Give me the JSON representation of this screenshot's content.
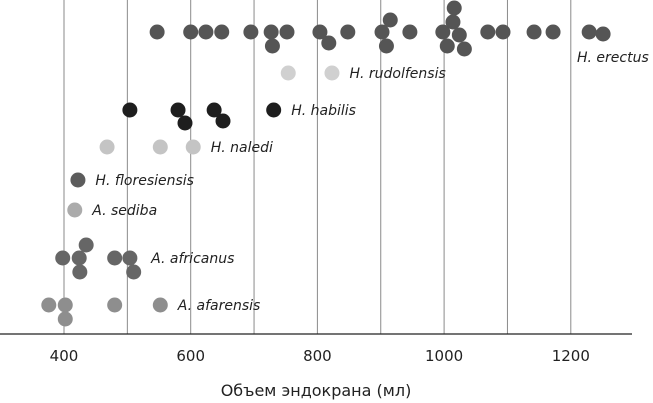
{
  "chart_data": {
    "type": "scatter",
    "title": "",
    "xlabel": "Объем эндокрана (мл)",
    "ylabel": "",
    "xlim": [
      300,
      1300
    ],
    "xticks": [
      400,
      600,
      800,
      1000,
      1200
    ],
    "grid_x_every": 100,
    "series": [
      {
        "name": "H. erectus",
        "color": "#555555",
        "values": [
          547,
          600,
          624,
          649,
          695,
          727,
          729,
          752,
          804,
          818,
          848,
          902,
          909,
          915,
          946,
          998,
          1005,
          1014,
          1016,
          1024,
          1032,
          1069,
          1093,
          1142,
          1172,
          1229,
          1251
        ]
      },
      {
        "name": "H. rudolfensis",
        "color": "#d0d0d0",
        "values": [
          754,
          823
        ]
      },
      {
        "name": "H. habilis",
        "color": "#1e1e1e",
        "values": [
          504,
          580,
          591,
          637,
          651,
          731
        ]
      },
      {
        "name": "H. naledi",
        "color": "#c4c4c4",
        "values": [
          468,
          552,
          604
        ]
      },
      {
        "name": "H. floresiensis",
        "color": "#5c5c5c",
        "values": [
          422
        ]
      },
      {
        "name": "A. sediba",
        "color": "#ababab",
        "values": [
          417
        ]
      },
      {
        "name": "A. africanus",
        "color": "#666666",
        "values": [
          398,
          424,
          425,
          435,
          480,
          504,
          510
        ]
      },
      {
        "name": "A. afarensis",
        "color": "#8e8e8e",
        "values": [
          376,
          402,
          402,
          480,
          552
        ]
      }
    ]
  }
}
